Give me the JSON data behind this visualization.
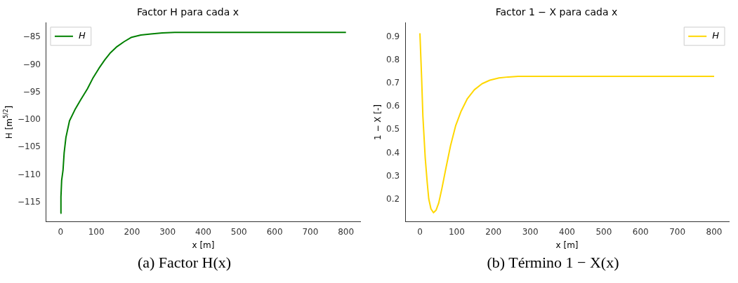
{
  "chart_data": [
    {
      "type": "line",
      "title": "Factor H para cada x",
      "xlabel": "x [m]",
      "ylabel": "H [m$^{5/2}$]",
      "series": [
        {
          "name": "H",
          "color": "#008000",
          "x": [
            0,
            1,
            3,
            6.8,
            10,
            15,
            25,
            40,
            56,
            75,
            90,
            108,
            124,
            140,
            158,
            178,
            199,
            225,
            253,
            285,
            320,
            400,
            500,
            600,
            700,
            800
          ],
          "values": [
            -117.0,
            -114.0,
            -111.0,
            -109.2,
            -106.0,
            -103.2,
            -100.2,
            -98.2,
            -96.4,
            -94.4,
            -92.5,
            -90.6,
            -89.1,
            -87.8,
            -86.7,
            -85.8,
            -85.0,
            -84.6,
            -84.4,
            -84.2,
            -84.1,
            -84.1,
            -84.1,
            -84.1,
            -84.1,
            -84.1
          ]
        }
      ],
      "xlim": [
        -40,
        840
      ],
      "ylim": [
        -118.5,
        -82.4
      ],
      "xticks": [
        0,
        100,
        200,
        300,
        400,
        500,
        600,
        700,
        800
      ],
      "yticks": [
        -115,
        -110,
        -105,
        -100,
        -95,
        -90,
        -85
      ],
      "legend": "top left",
      "grid": false,
      "marker": "none",
      "line_style": "solid",
      "annotations": [
        "(a) Factor H(x)"
      ]
    },
    {
      "type": "line",
      "title": "Factor 1 − X para cada x",
      "xlabel": "x [m]",
      "ylabel": "1 − X [-]",
      "series": [
        {
          "name": "H",
          "color": "#ffd700",
          "x": [
            0,
            2,
            4.6,
            8,
            14.4,
            20,
            24,
            30,
            37,
            44,
            51,
            60,
            70,
            83,
            97,
            112,
            129,
            148,
            169,
            190,
            215,
            240,
            267,
            300,
            400,
            500,
            600,
            700,
            800
          ],
          "values": [
            0.915,
            0.83,
            0.723,
            0.56,
            0.379,
            0.27,
            0.203,
            0.16,
            0.144,
            0.155,
            0.185,
            0.25,
            0.33,
            0.43,
            0.517,
            0.58,
            0.634,
            0.672,
            0.698,
            0.713,
            0.723,
            0.727,
            0.73,
            0.73,
            0.73,
            0.73,
            0.73,
            0.73,
            0.73
          ]
        }
      ],
      "xlim": [
        -40,
        840
      ],
      "ylim": [
        0.106,
        0.959
      ],
      "xticks": [
        0,
        100,
        200,
        300,
        400,
        500,
        600,
        700,
        800
      ],
      "yticks": [
        0.2,
        0.3,
        0.4,
        0.5,
        0.6,
        0.7,
        0.8,
        0.9
      ],
      "legend": "top right",
      "grid": false,
      "marker": "none",
      "line_style": "solid",
      "annotations": [
        "(b) Término 1 − X(x)"
      ]
    }
  ]
}
